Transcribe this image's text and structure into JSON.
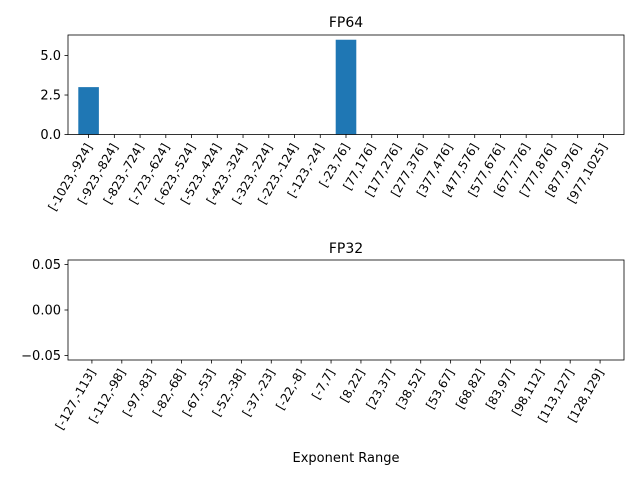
{
  "colors": {
    "bar": "#1f77b4",
    "axes": "#000000",
    "background": "#ffffff"
  },
  "chart_data": [
    {
      "type": "bar",
      "title": "FP64",
      "xlabel": "",
      "ylabel": "",
      "ylim": [
        0,
        6.3
      ],
      "yticks": [
        0.0,
        2.5,
        5.0
      ],
      "ytick_labels": [
        "0.0",
        "2.5",
        "5.0"
      ],
      "grid": false,
      "categories": [
        "[-1023,-924]",
        "[-923,-824]",
        "[-823,-724]",
        "[-723,-624]",
        "[-623,-524]",
        "[-523,-424]",
        "[-423,-324]",
        "[-323,-224]",
        "[-223,-124]",
        "[-123,-24]",
        "[-23,76]",
        "[77,176]",
        "[177,276]",
        "[277,376]",
        "[377,476]",
        "[477,576]",
        "[577,676]",
        "[677,776]",
        "[777,876]",
        "[877,976]",
        "[977,1025]"
      ],
      "values": [
        3,
        0,
        0,
        0,
        0,
        0,
        0,
        0,
        0,
        0,
        6,
        0,
        0,
        0,
        0,
        0,
        0,
        0,
        0,
        0,
        0
      ]
    },
    {
      "type": "bar",
      "title": "FP32",
      "xlabel": "Exponent Range",
      "ylabel": "",
      "ylim": [
        -0.055,
        0.055
      ],
      "yticks": [
        -0.05,
        0.0,
        0.05
      ],
      "ytick_labels": [
        "−0.05",
        "0.00",
        "0.05"
      ],
      "grid": false,
      "categories": [
        "[-127,-113]",
        "[-112,-98]",
        "[-97,-83]",
        "[-82,-68]",
        "[-67,-53]",
        "[-52,-38]",
        "[-37,-23]",
        "[-22,-8]",
        "[-7,7]",
        "[8,22]",
        "[23,37]",
        "[38,52]",
        "[53,67]",
        "[68,82]",
        "[83,97]",
        "[98,112]",
        "[113,127]",
        "[128,129]"
      ],
      "values": [
        0,
        0,
        0,
        0,
        0,
        0,
        0,
        0,
        0,
        0,
        0,
        0,
        0,
        0,
        0,
        0,
        0,
        0
      ]
    }
  ]
}
